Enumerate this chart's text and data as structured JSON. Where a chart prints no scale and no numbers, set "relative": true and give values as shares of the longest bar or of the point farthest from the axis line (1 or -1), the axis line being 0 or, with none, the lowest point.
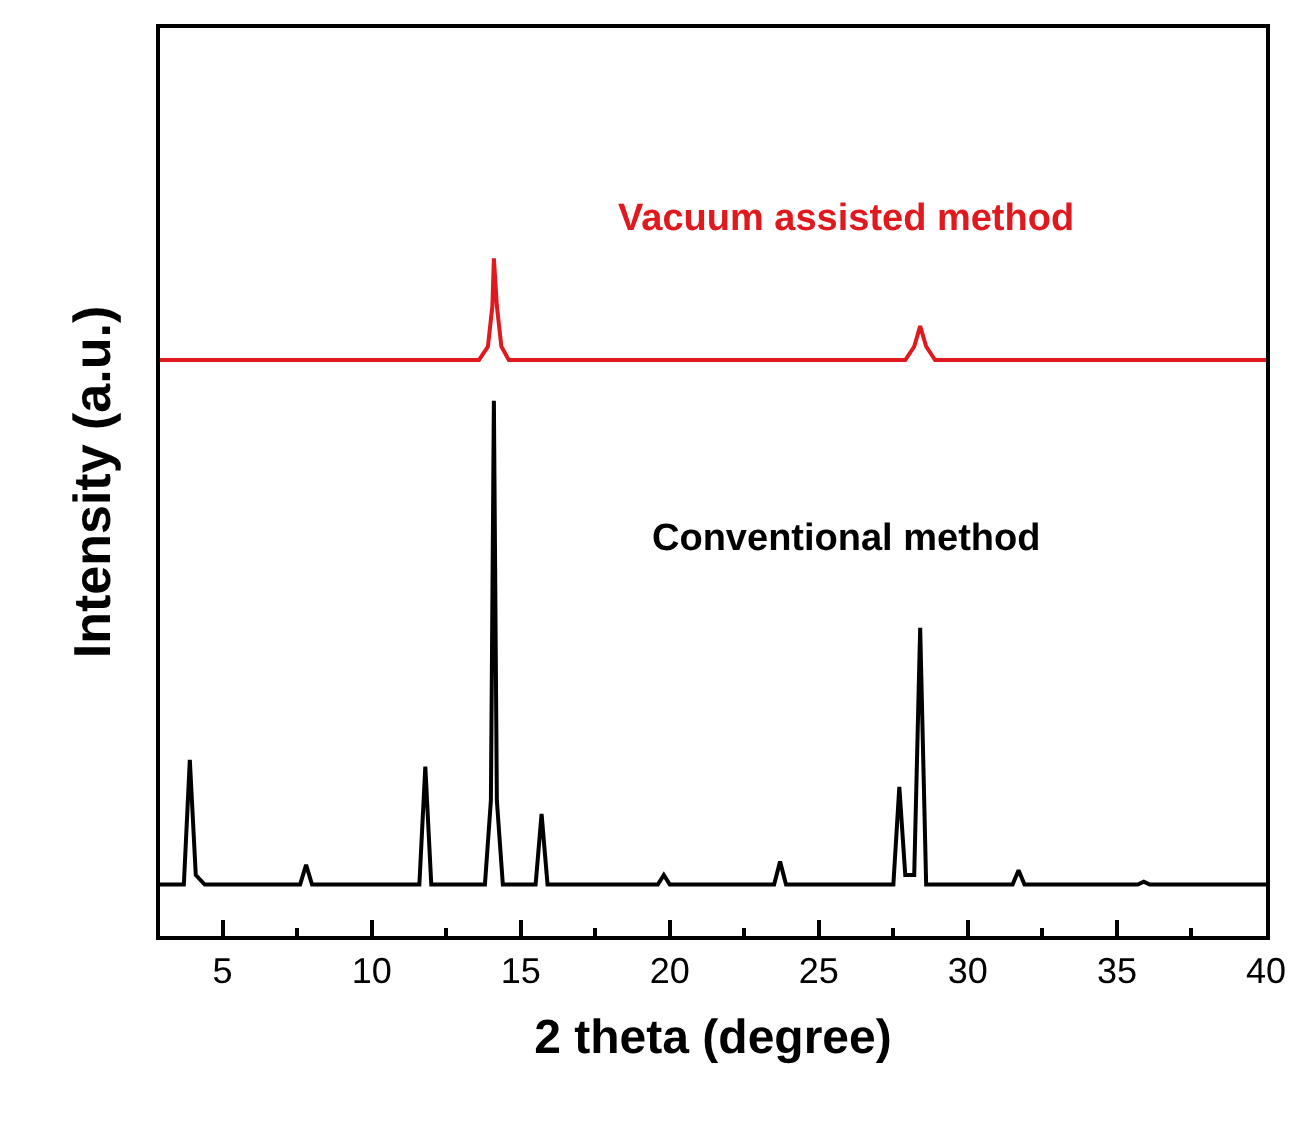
{
  "chart_data": {
    "type": "line",
    "xlabel": "2 theta (degree)",
    "ylabel": "Intensity (a.u.)",
    "relative": true,
    "xlim": [
      2.9,
      40
    ],
    "xticks": [
      5,
      10,
      15,
      20,
      25,
      30,
      35,
      40
    ],
    "legend": false,
    "marker": "none",
    "line_style": "solid",
    "series": [
      {
        "name": "Vacuum assisted method",
        "color": "#e0191e",
        "x": [
          2.9,
          6.0,
          10.0,
          13.6,
          13.9,
          14.05,
          14.1,
          14.2,
          14.35,
          14.6,
          20.0,
          27.9,
          28.2,
          28.4,
          28.6,
          28.9,
          35.0,
          40.0
        ],
        "values": [
          0.85,
          0.85,
          0.85,
          0.85,
          0.87,
          0.93,
          1.0,
          0.93,
          0.87,
          0.85,
          0.85,
          0.85,
          0.87,
          0.9,
          0.87,
          0.85,
          0.85,
          0.85
        ]
      },
      {
        "name": "Conventional method",
        "color": "#000000",
        "x": [
          2.9,
          3.7,
          3.9,
          4.1,
          4.4,
          7.6,
          7.8,
          8.0,
          11.6,
          11.8,
          12.0,
          13.8,
          14.0,
          14.1,
          14.2,
          14.4,
          15.5,
          15.7,
          15.9,
          19.6,
          19.8,
          20.0,
          23.5,
          23.7,
          23.9,
          27.5,
          27.7,
          27.9,
          28.2,
          28.4,
          28.6,
          31.5,
          31.7,
          31.9,
          35.7,
          35.9,
          36.1,
          40.0
        ],
        "values": [
          0.076,
          0.076,
          0.26,
          0.09,
          0.076,
          0.076,
          0.105,
          0.076,
          0.076,
          0.25,
          0.076,
          0.076,
          0.2,
          0.79,
          0.2,
          0.076,
          0.076,
          0.18,
          0.076,
          0.076,
          0.09,
          0.076,
          0.076,
          0.11,
          0.076,
          0.076,
          0.22,
          0.09,
          0.09,
          0.455,
          0.076,
          0.076,
          0.097,
          0.076,
          0.076,
          0.08,
          0.076,
          0.076
        ]
      }
    ]
  }
}
